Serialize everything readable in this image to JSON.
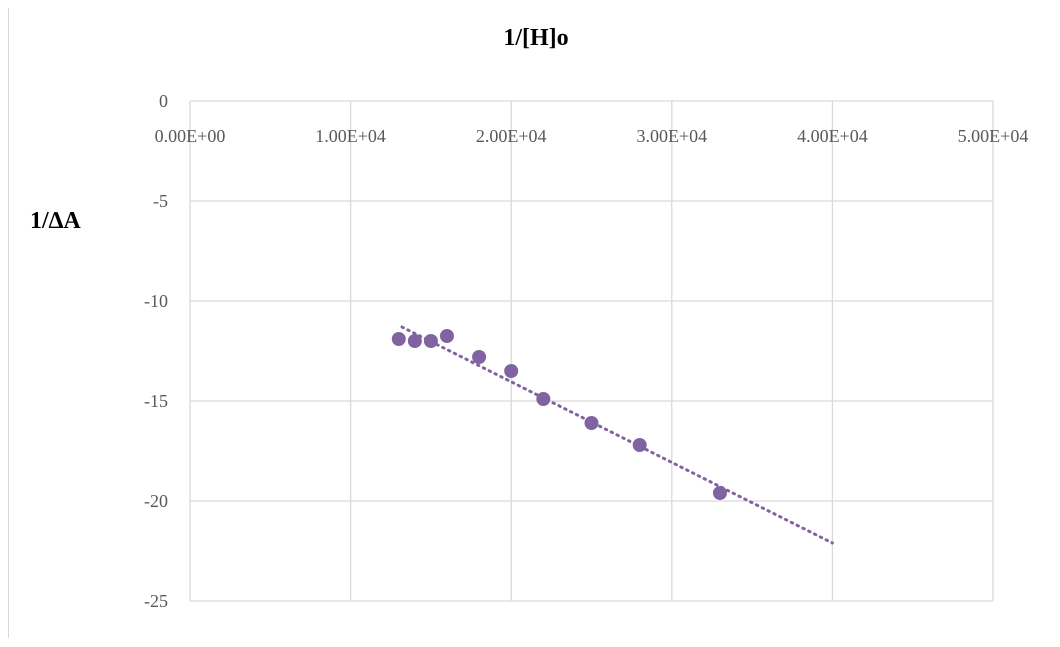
{
  "chart_data": {
    "type": "scatter",
    "title": "1/[H]o",
    "xlabel": "",
    "ylabel": "1/∆A",
    "xlim": [
      0,
      50000
    ],
    "ylim": [
      -25,
      0
    ],
    "x_ticks": [
      {
        "value": 0,
        "label": "0.00E+00"
      },
      {
        "value": 10000,
        "label": "1.00E+04"
      },
      {
        "value": 20000,
        "label": "2.00E+04"
      },
      {
        "value": 30000,
        "label": "3.00E+04"
      },
      {
        "value": 40000,
        "label": "4.00E+04"
      },
      {
        "value": 50000,
        "label": "5.00E+04"
      }
    ],
    "y_ticks": [
      {
        "value": 0,
        "label": "0"
      },
      {
        "value": -5,
        "label": "-5"
      },
      {
        "value": -10,
        "label": "-10"
      },
      {
        "value": -15,
        "label": "-15"
      },
      {
        "value": -20,
        "label": "-20"
      },
      {
        "value": -25,
        "label": "-25"
      }
    ],
    "x_axis_position": "top",
    "grid": true,
    "legend": "none",
    "series": [
      {
        "color": "#8064a2",
        "marker": "circle",
        "points": [
          {
            "x": 13000,
            "y": -11.9
          },
          {
            "x": 14000,
            "y": -12.0
          },
          {
            "x": 15000,
            "y": -12.0
          },
          {
            "x": 16000,
            "y": -11.75
          },
          {
            "x": 18000,
            "y": -12.8
          },
          {
            "x": 20000,
            "y": -13.5
          },
          {
            "x": 22000,
            "y": -14.9
          },
          {
            "x": 25000,
            "y": -16.1
          },
          {
            "x": 28000,
            "y": -17.2
          },
          {
            "x": 33000,
            "y": -19.6
          }
        ]
      }
    ],
    "trendline": {
      "type": "linear",
      "style": "dotted",
      "color": "#8064a2",
      "from": {
        "x": 13200,
        "y": -11.3
      },
      "to": {
        "x": 40000,
        "y": -22.1
      }
    },
    "colors": {
      "grid": "#d9d9d9",
      "tick_text": "#595959",
      "title_text": "#000000"
    }
  }
}
